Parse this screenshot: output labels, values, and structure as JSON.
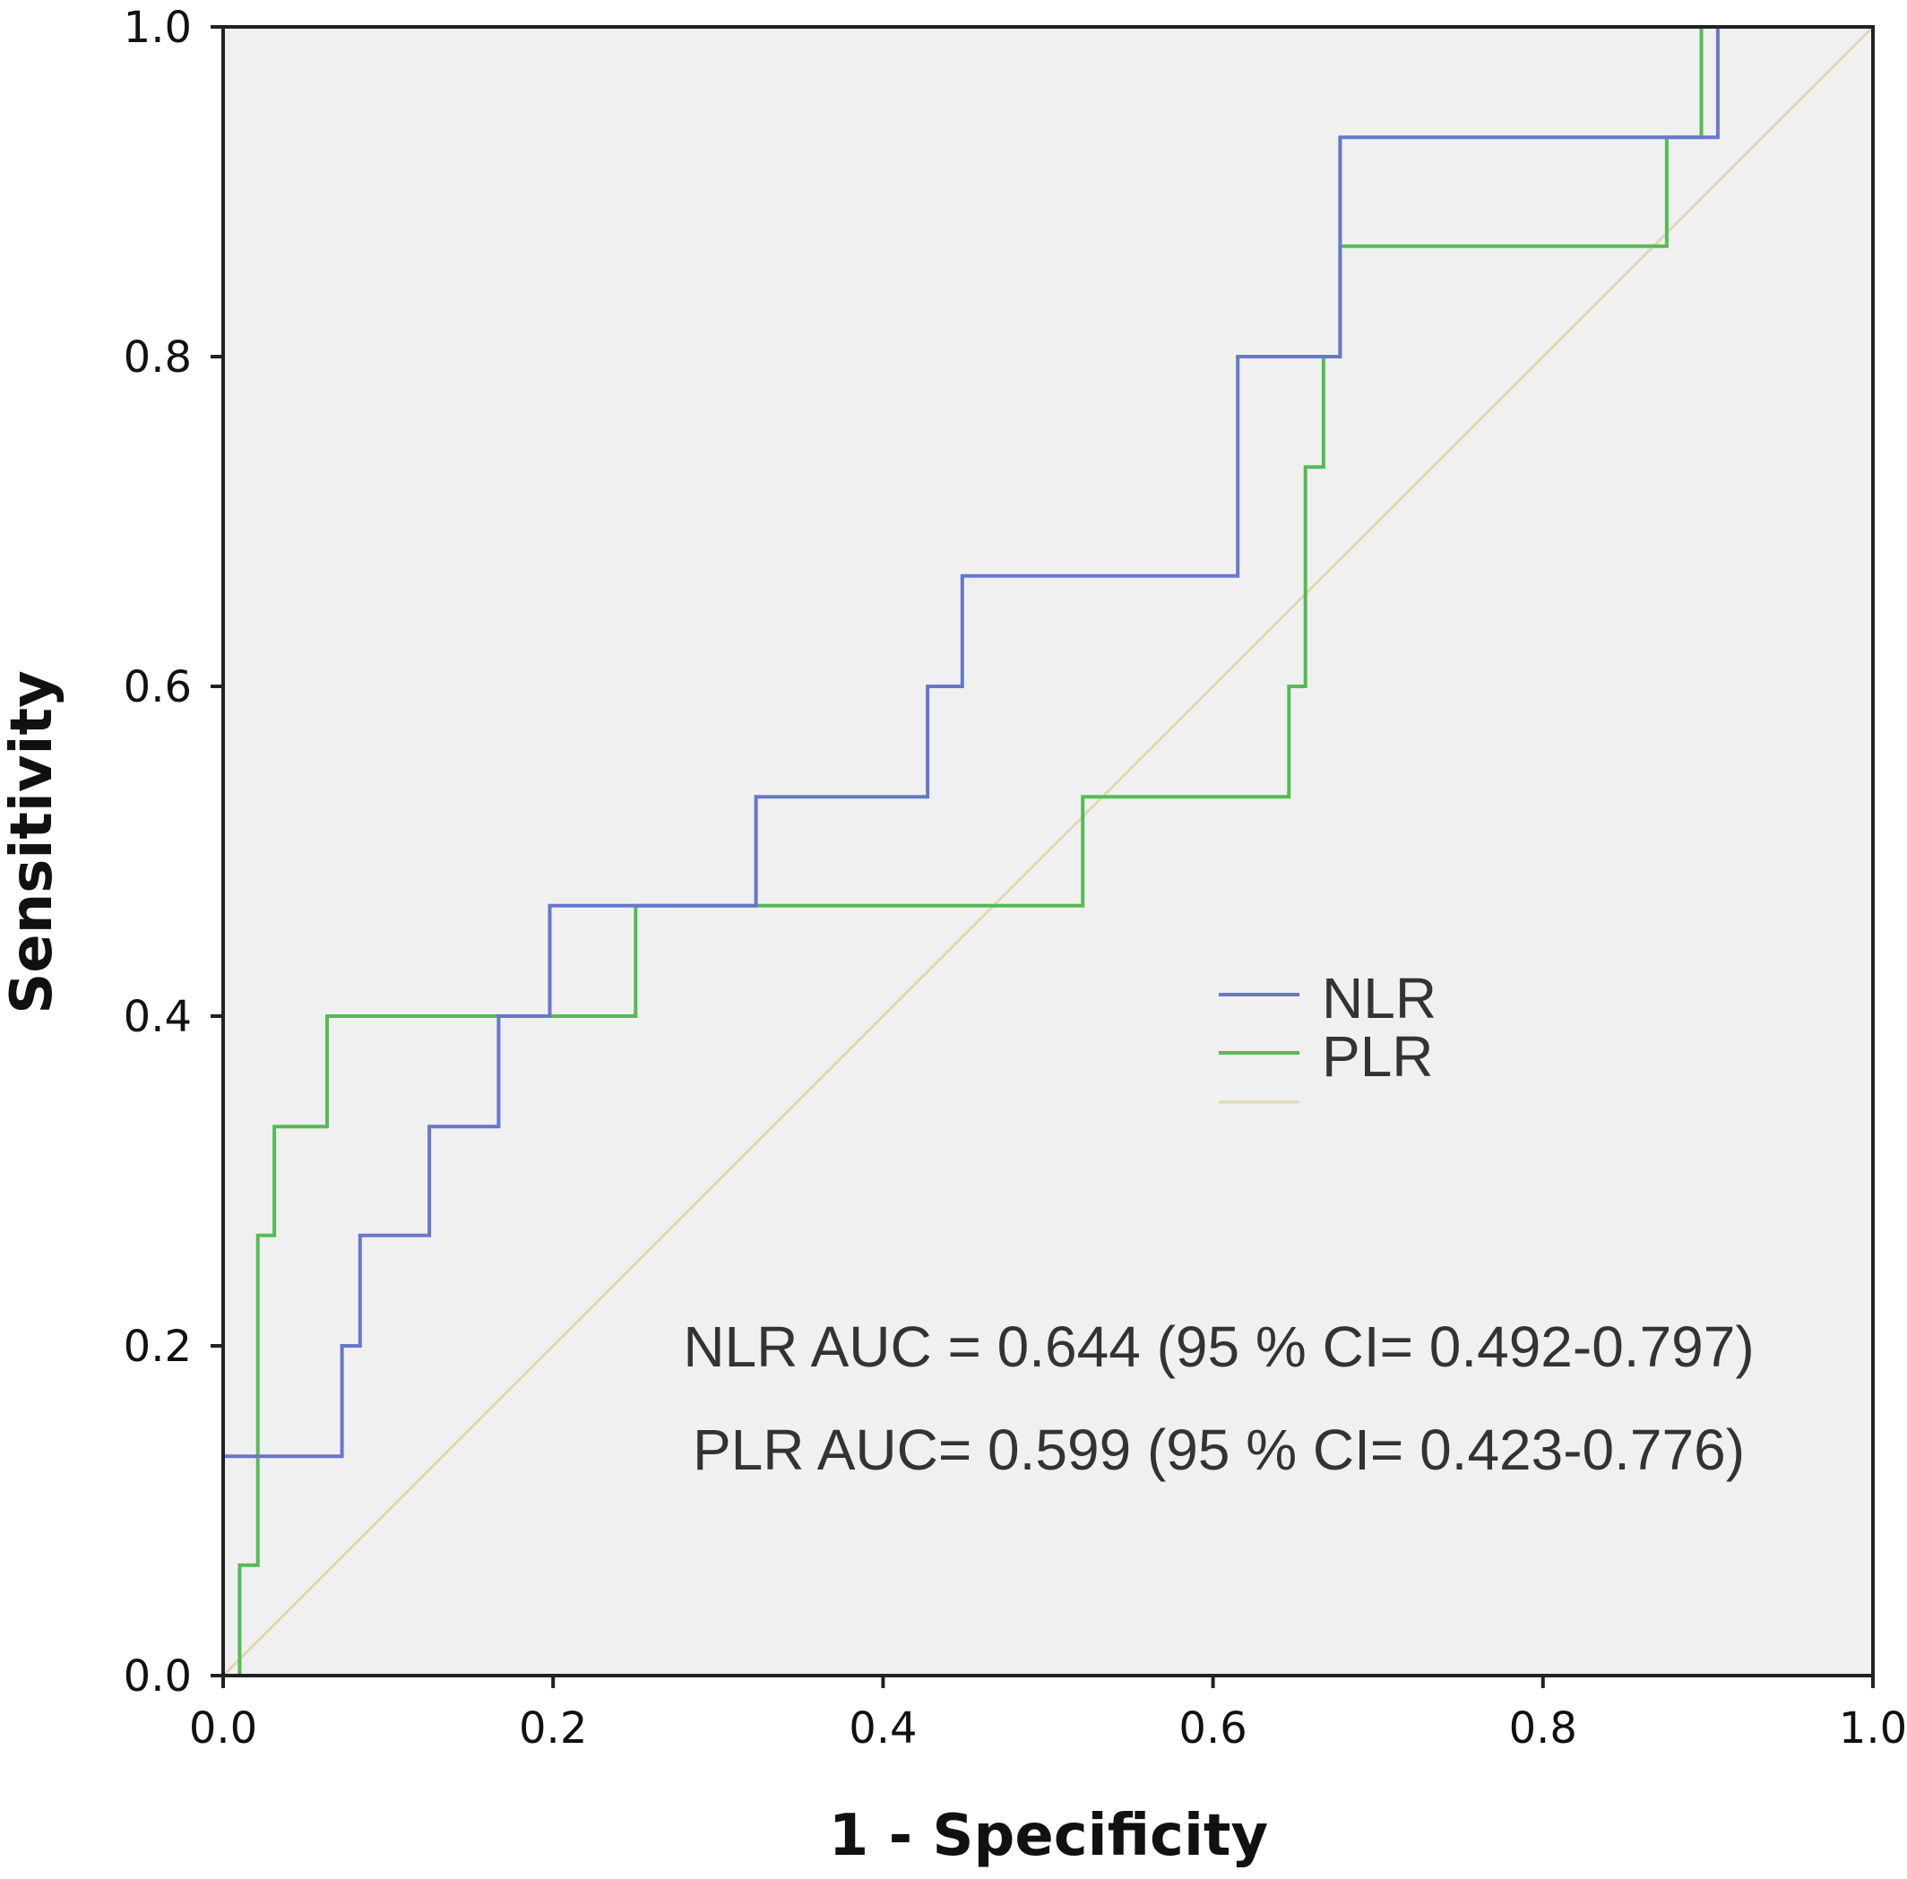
{
  "chart_data": {
    "type": "line",
    "subtype": "roc-step",
    "title": "",
    "xlabel": "1 - Specificity",
    "ylabel": "Sensitivity",
    "xlim": [
      0,
      1
    ],
    "ylim": [
      0,
      1
    ],
    "x_ticks": [
      "0.0",
      "0.2",
      "0.4",
      "0.6",
      "0.8",
      "1.0"
    ],
    "y_ticks": [
      "0.0",
      "0.2",
      "0.4",
      "0.6",
      "0.8",
      "1.0"
    ],
    "grid": false,
    "background": "#f0f0f0",
    "legend": {
      "placement": "center-right",
      "entries": [
        {
          "label": "NLR",
          "color": "#6677cc"
        },
        {
          "label": "PLR",
          "color": "#55bb55"
        },
        {
          "label": "",
          "color": "#e0d8b0"
        }
      ]
    },
    "series": [
      {
        "name": "NLR",
        "color": "#6677cc",
        "points": [
          [
            0,
            0.133
          ],
          [
            0.072,
            0.133
          ],
          [
            0.072,
            0.2
          ],
          [
            0.083,
            0.2
          ],
          [
            0.083,
            0.267
          ],
          [
            0.125,
            0.267
          ],
          [
            0.125,
            0.333
          ],
          [
            0.167,
            0.333
          ],
          [
            0.167,
            0.4
          ],
          [
            0.198,
            0.4
          ],
          [
            0.198,
            0.467
          ],
          [
            0.323,
            0.467
          ],
          [
            0.323,
            0.533
          ],
          [
            0.427,
            0.533
          ],
          [
            0.427,
            0.6
          ],
          [
            0.448,
            0.6
          ],
          [
            0.448,
            0.667
          ],
          [
            0.615,
            0.667
          ],
          [
            0.615,
            0.8
          ],
          [
            0.677,
            0.8
          ],
          [
            0.677,
            0.933
          ],
          [
            0.906,
            0.933
          ],
          [
            0.906,
            1.0
          ],
          [
            1.0,
            1.0
          ]
        ]
      },
      {
        "name": "PLR",
        "color": "#55bb55",
        "points": [
          [
            0.01,
            0
          ],
          [
            0.01,
            0.067
          ],
          [
            0.021,
            0.067
          ],
          [
            0.021,
            0.267
          ],
          [
            0.031,
            0.267
          ],
          [
            0.031,
            0.333
          ],
          [
            0.063,
            0.333
          ],
          [
            0.063,
            0.4
          ],
          [
            0.25,
            0.4
          ],
          [
            0.25,
            0.467
          ],
          [
            0.521,
            0.467
          ],
          [
            0.521,
            0.533
          ],
          [
            0.646,
            0.533
          ],
          [
            0.646,
            0.6
          ],
          [
            0.656,
            0.6
          ],
          [
            0.656,
            0.733
          ],
          [
            0.667,
            0.733
          ],
          [
            0.667,
            0.8
          ],
          [
            0.677,
            0.8
          ],
          [
            0.677,
            0.867
          ],
          [
            0.875,
            0.867
          ],
          [
            0.875,
            0.933
          ],
          [
            0.896,
            0.933
          ],
          [
            0.896,
            1.0
          ],
          [
            1.0,
            1.0
          ]
        ]
      },
      {
        "name": "",
        "color": "#e0d8b0",
        "points": [
          [
            0,
            0
          ],
          [
            1,
            1
          ]
        ]
      }
    ],
    "annotations": [
      "NLR AUC = 0.644 (95 % CI= 0.492-0.797)",
      "PLR AUC= 0.599 (95 % CI= 0.423-0.776)"
    ]
  }
}
